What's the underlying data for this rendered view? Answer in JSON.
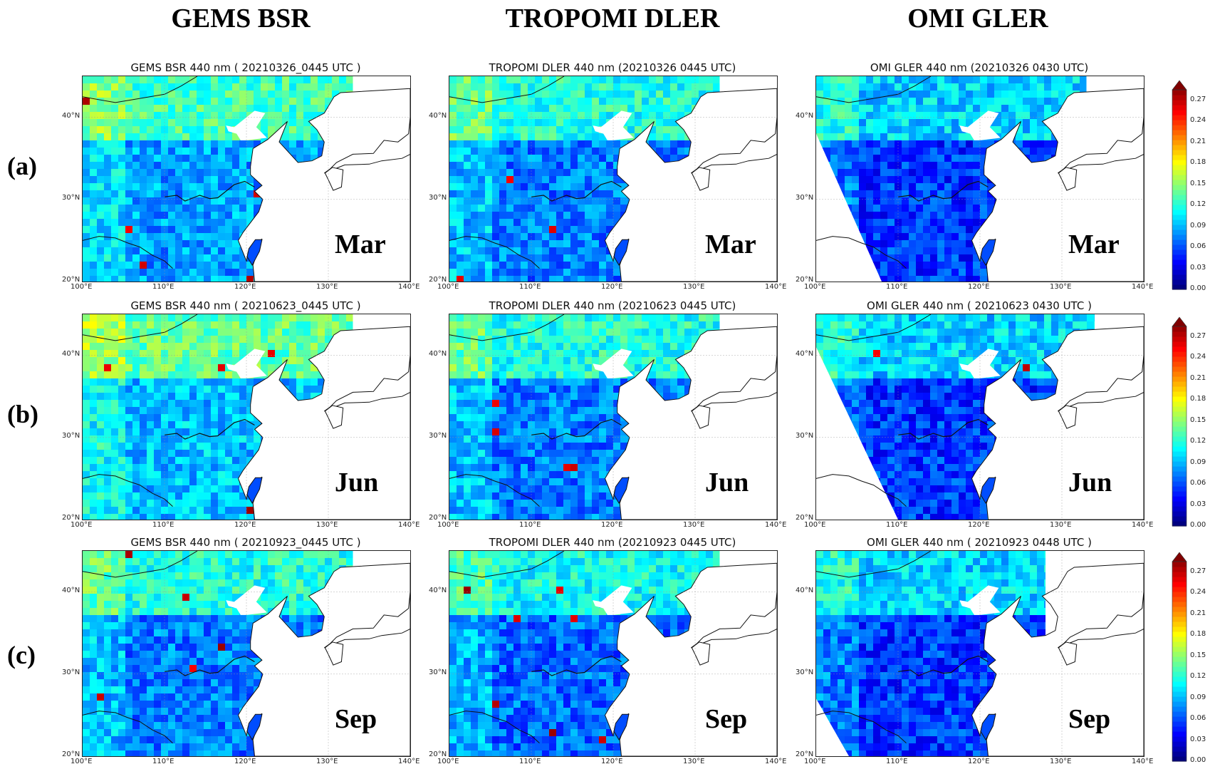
{
  "figure": {
    "column_titles": [
      "GEMS BSR",
      "TROPOMI DLER",
      "OMI GLER"
    ],
    "row_labels": [
      "(a)",
      "(b)",
      "(c)"
    ]
  },
  "chart_data": [
    {
      "type": "heatmap",
      "row": 0,
      "col": 0,
      "title": "GEMS BSR 440 nm ( 20210326_0445 UTC )",
      "month": "Mar",
      "mean": 0.08,
      "hot": 0.9
    },
    {
      "type": "heatmap",
      "row": 0,
      "col": 1,
      "title": "TROPOMI DLER 440 nm (20210326 0445 UTC)",
      "month": "Mar",
      "mean": 0.07,
      "hot": 0.5
    },
    {
      "type": "heatmap",
      "row": 0,
      "col": 2,
      "title": "OMI GLER 440 nm (20210326 0430 UTC)",
      "month": "Mar",
      "mean": 0.05,
      "hot": 0.3
    },
    {
      "type": "heatmap",
      "row": 1,
      "col": 0,
      "title": "GEMS BSR 440 nm ( 20210623_0445 UTC )",
      "month": "Jun",
      "mean": 0.09,
      "hot": 0.5
    },
    {
      "type": "heatmap",
      "row": 1,
      "col": 1,
      "title": "TROPOMI DLER 440 nm (20210623 0445 UTC)",
      "month": "Jun",
      "mean": 0.07,
      "hot": 0.2
    },
    {
      "type": "heatmap",
      "row": 1,
      "col": 2,
      "title": "OMI GLER 440 nm ( 20210623 0430 UTC )",
      "month": "Jun",
      "mean": 0.05,
      "hot": 0.1
    },
    {
      "type": "heatmap",
      "row": 2,
      "col": 0,
      "title": "GEMS BSR 440 nm ( 20210923_0445 UTC )",
      "month": "Sep",
      "mean": 0.07,
      "hot": 0.2
    },
    {
      "type": "heatmap",
      "row": 2,
      "col": 1,
      "title": "TROPOMI DLER 440 nm (20210923 0445 UTC)",
      "month": "Sep",
      "mean": 0.065,
      "hot": 0.3
    },
    {
      "type": "heatmap",
      "row": 2,
      "col": 2,
      "title": "OMI GLER 440 nm ( 20210923 0448 UTC )",
      "month": "Sep",
      "mean": 0.05,
      "hot": 0.1
    }
  ],
  "axes": {
    "x_ticks": [
      "100°E",
      "110°E",
      "120°E",
      "130°E",
      "140°E"
    ],
    "y_ticks": [
      "20°N",
      "30°N",
      "40°N"
    ],
    "xlim": [
      100,
      140
    ],
    "ylim": [
      20,
      45
    ]
  },
  "colorbar": {
    "colormap": "jet",
    "range": [
      0.0,
      0.285
    ],
    "ticks": [
      "0.00",
      "0.03",
      "0.06",
      "0.09",
      "0.12",
      "0.15",
      "0.18",
      "0.21",
      "0.24",
      "0.27"
    ],
    "extend": "max"
  }
}
